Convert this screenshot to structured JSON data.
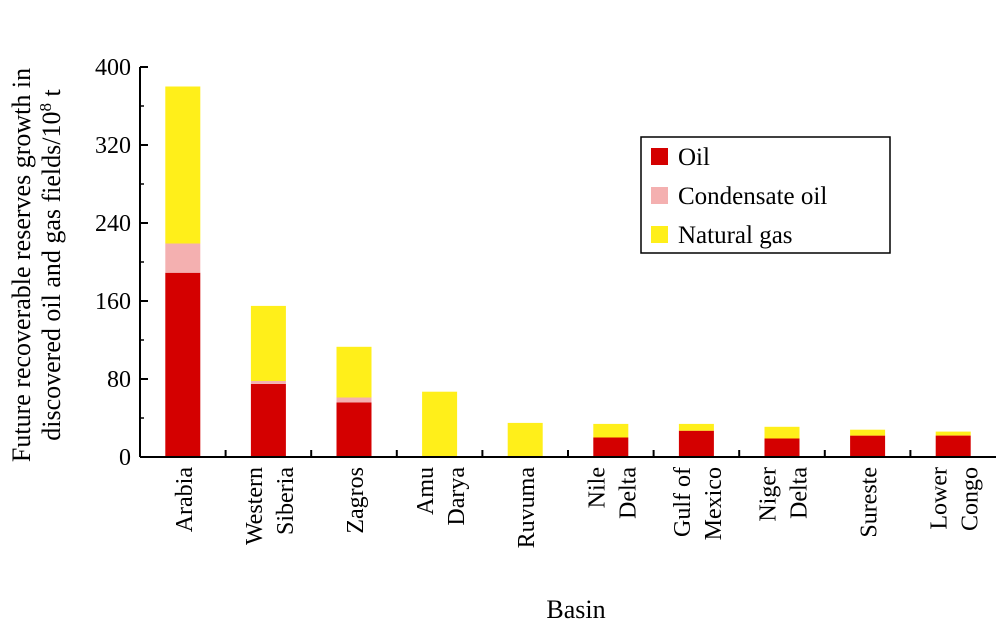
{
  "chart_data": {
    "type": "bar",
    "stacked": true,
    "ylabel_line1": "Future recoverable reserves growth in",
    "ylabel_line2": "discovered oil and gas fields/10",
    "ylabel_sup": "8",
    "ylabel_unit": " t",
    "xlabel": "Basin",
    "ylim": [
      0,
      400
    ],
    "yticks": [
      0,
      80,
      160,
      240,
      320,
      400
    ],
    "categories": [
      [
        "Arabia"
      ],
      [
        "Western",
        "Siberia"
      ],
      [
        "Zagros"
      ],
      [
        "Amu",
        "Darya"
      ],
      [
        "Ruvuma"
      ],
      [
        "Nile",
        "Delta"
      ],
      [
        "Gulf of",
        "Mexico"
      ],
      [
        "Niger",
        "Delta"
      ],
      [
        "Sureste"
      ],
      [
        "Lower",
        "Congo"
      ]
    ],
    "series": [
      {
        "name": "Oil",
        "color": "#d40000",
        "values": [
          189,
          75,
          56,
          0,
          0,
          20,
          27,
          19,
          22,
          22
        ]
      },
      {
        "name": "Condensate oil",
        "color": "#f4b0b0",
        "values": [
          30,
          3,
          5,
          0,
          0,
          0,
          0,
          0,
          0,
          0
        ]
      },
      {
        "name": "Natural gas",
        "color": "#ffef1a",
        "values": [
          161,
          77,
          52,
          67,
          35,
          14,
          7,
          12,
          6,
          4
        ]
      }
    ],
    "legend_position": "top-right",
    "grid": false
  }
}
